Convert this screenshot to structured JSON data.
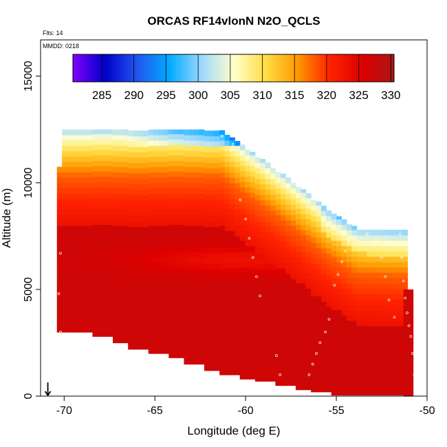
{
  "chart_data": {
    "type": "heatmap",
    "title": "ORCAS RF14vlonN N2O_QCLS",
    "xlabel": "Longitude (deg E)",
    "ylabel": "Altitude (m)",
    "xlim": [
      -71.3,
      -50
    ],
    "ylim": [
      0,
      16700
    ],
    "x_ticks": [
      -70,
      -65,
      -60,
      -55,
      -50
    ],
    "x_tick_labels": [
      "-70",
      "-65",
      "-60",
      "-55",
      "-50"
    ],
    "y_ticks": [
      0,
      5000,
      10000,
      15000
    ],
    "y_tick_labels": [
      "0",
      "5000",
      "10000",
      "15000"
    ],
    "grid": false,
    "legend": "top colorbar",
    "notes": {
      "flights": "Flts: 14",
      "date": "MMDD: 0218"
    },
    "colorbar": {
      "min": 280.5,
      "max": 330.5,
      "ticks": [
        285,
        290,
        295,
        300,
        305,
        310,
        315,
        320,
        325,
        330
      ],
      "tick_labels": [
        "285",
        "290",
        "295",
        "300",
        "305",
        "310",
        "315",
        "320",
        "325",
        "330"
      ],
      "colors": [
        "#7f00ff",
        "#0000c8",
        "#2255ee",
        "#00aaff",
        "#9dd8ff",
        "#ffffcc",
        "#ffdd44",
        "#ff9900",
        "#ff2200",
        "#dd0000",
        "#aa1515"
      ]
    },
    "field_description_values": {
      "lower_troposphere_level": 327,
      "mid_level_maximum": 323,
      "upper_tropospheric_gradient_top": 300
    },
    "flight_track": [
      [
        -70.2,
        6700
      ],
      [
        -70.3,
        4800
      ],
      [
        -70.2,
        3000
      ],
      [
        -60.3,
        9200
      ],
      [
        -60.0,
        8300
      ],
      [
        -59.8,
        7400
      ],
      [
        -59.6,
        6500
      ],
      [
        -59.4,
        5600
      ],
      [
        -59.2,
        4700
      ],
      [
        -58.3,
        1900
      ],
      [
        -58.1,
        1000
      ],
      [
        -57.6,
        200
      ],
      [
        -57.3,
        100
      ],
      [
        -57.0,
        100
      ],
      [
        -56.5,
        1000
      ],
      [
        -56.3,
        1500
      ],
      [
        -56.1,
        2000
      ],
      [
        -55.9,
        2500
      ],
      [
        -55.6,
        3000
      ],
      [
        -55.4,
        3600
      ],
      [
        -55.1,
        5200
      ],
      [
        -54.9,
        5700
      ],
      [
        -54.7,
        6300
      ],
      [
        -54.5,
        6800
      ],
      [
        -54.3,
        7200
      ],
      [
        -53.3,
        7600
      ],
      [
        -52.8,
        7300
      ],
      [
        -52.5,
        6500
      ],
      [
        -52.3,
        5600
      ],
      [
        -52.1,
        4500
      ],
      [
        -51.8,
        3700
      ],
      [
        -51.5,
        7600
      ],
      [
        -51.4,
        6500
      ],
      [
        -51.3,
        5400
      ],
      [
        -51.2,
        4600
      ],
      [
        -51.1,
        3900
      ],
      [
        -51.0,
        3300
      ],
      [
        -50.9,
        2800
      ],
      [
        -50.8,
        2000
      ],
      [
        -50.7,
        1000
      ],
      [
        -50.6,
        500
      ],
      [
        -50.6,
        100
      ],
      [
        -67.2,
        12600
      ],
      [
        -66.5,
        12600
      ],
      [
        -65.7,
        12600
      ],
      [
        -64.8,
        12600
      ],
      [
        -64.2,
        12600
      ],
      [
        -63.5,
        12600
      ],
      [
        -62.9,
        12600
      ],
      [
        -62.4,
        12600
      ],
      [
        -61.9,
        12500
      ],
      [
        -61.3,
        12200
      ],
      [
        -60.7,
        11800
      ]
    ],
    "location_arrow_x": -70.9
  }
}
